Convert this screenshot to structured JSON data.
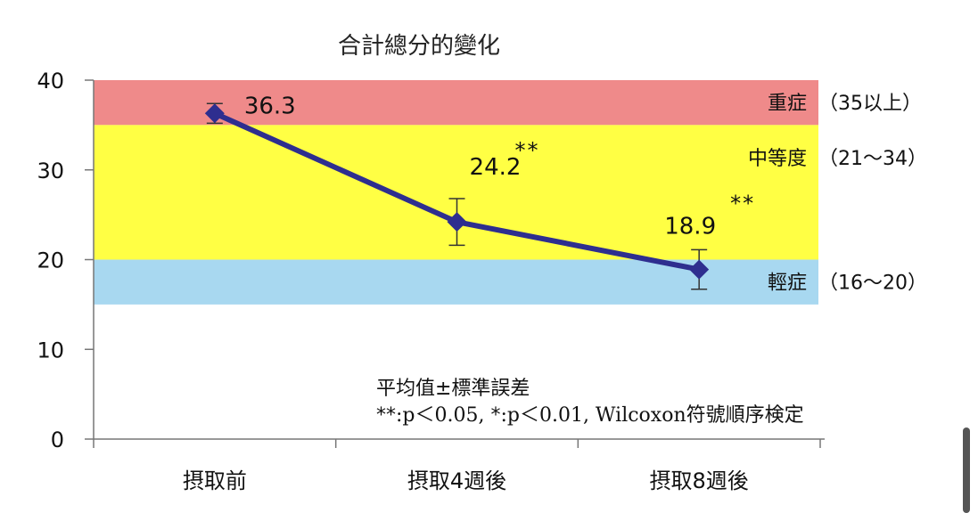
{
  "chart_data": {
    "type": "line",
    "title": "合計總分的變化",
    "categories": [
      "摂取前",
      "摂取4週後",
      "摂取8週後"
    ],
    "ylim": [
      0,
      40
    ],
    "yticks": [
      0,
      10,
      20,
      30,
      40
    ],
    "series": [
      {
        "values": [
          36.3,
          24.2,
          18.9
        ],
        "error": [
          1.1,
          2.6,
          2.2
        ],
        "color": "#2e2e8f",
        "value_labels": [
          "36.3",
          "24.2",
          "18.9"
        ],
        "significance": [
          "",
          "**",
          "**"
        ]
      }
    ],
    "bands": [
      {
        "label": "重症",
        "range_label": "（35以上）",
        "from": 35,
        "to": 40,
        "color": "#ef8a8a"
      },
      {
        "label": "中等度",
        "range_label": "（21～34）",
        "from": 20,
        "to": 35,
        "color": "#ffff44"
      },
      {
        "label": "輕症",
        "range_label": "（16～20）",
        "from": 15,
        "to": 20,
        "color": "#a8d8f0"
      }
    ],
    "annotations": {
      "line1": "平均值±標準誤差",
      "line2_prefix": "**",
      "line2_a": ":p＜0.05, ",
      "line2_star": "*",
      "line2_b": ":p＜0.01, Wilcoxon",
      "line2_suffix": "符號順序検定"
    },
    "grid": false,
    "legend": "none"
  }
}
